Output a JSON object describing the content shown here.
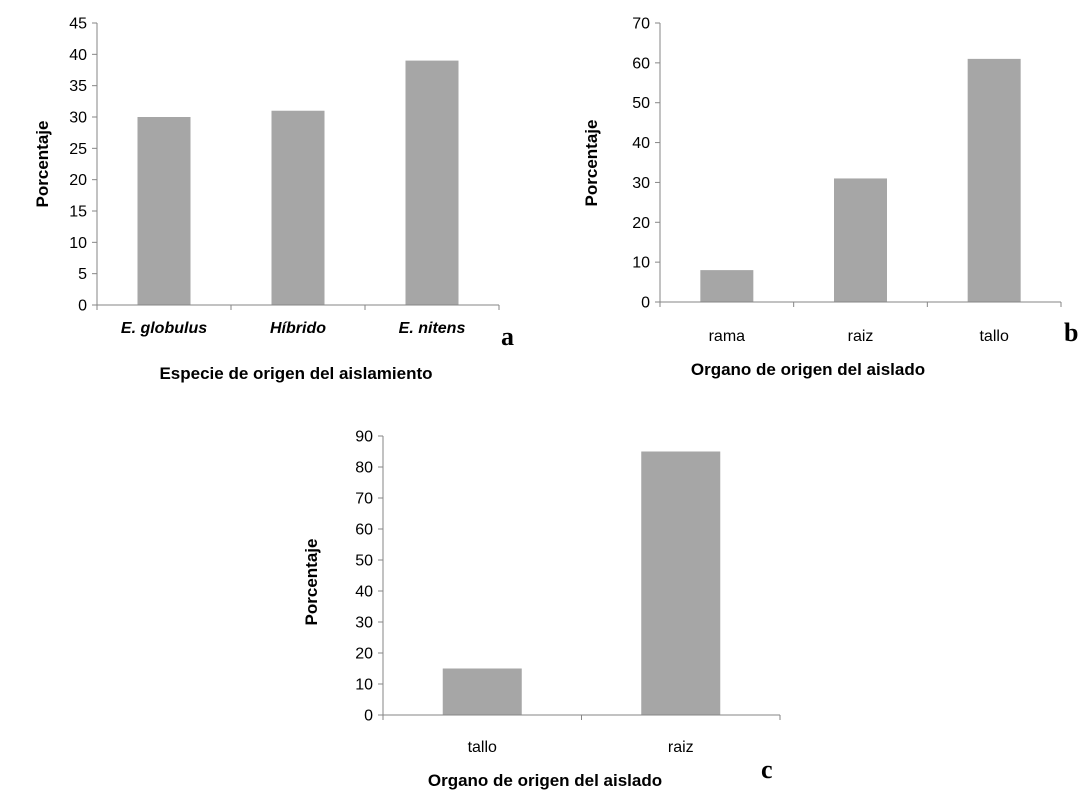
{
  "chart_data": [
    {
      "id": "a",
      "type": "bar",
      "panel_label": "a",
      "categories": [
        "E. globulus",
        "Híbrido",
        "E. nitens"
      ],
      "categories_italic": true,
      "values": [
        30,
        31,
        39
      ],
      "title": "",
      "xlabel": "Especie de origen del aislamiento",
      "ylabel": "Porcentaje",
      "ylim": [
        0,
        45
      ],
      "ytick_step": 5,
      "yticks": [
        "0",
        "5",
        "10",
        "15",
        "20",
        "25",
        "30",
        "35",
        "40",
        "45"
      ],
      "grid": false,
      "legend": "none",
      "bar_color": "#a6a6a6"
    },
    {
      "id": "b",
      "type": "bar",
      "panel_label": "b",
      "categories": [
        "rama",
        "raiz",
        "tallo"
      ],
      "categories_italic": false,
      "values": [
        8,
        31,
        61
      ],
      "title": "",
      "xlabel": "Organo de origen del aislado",
      "ylabel": "Porcentaje",
      "ylim": [
        0,
        70
      ],
      "ytick_step": 10,
      "yticks": [
        "0",
        "10",
        "20",
        "30",
        "40",
        "50",
        "60",
        "70"
      ],
      "grid": false,
      "legend": "none",
      "bar_color": "#a6a6a6"
    },
    {
      "id": "c",
      "type": "bar",
      "panel_label": "c",
      "categories": [
        "tallo",
        "raiz"
      ],
      "categories_italic": false,
      "values": [
        15,
        85
      ],
      "title": "",
      "xlabel": "Organo de origen del aislado",
      "ylabel": "Porcentaje",
      "ylim": [
        0,
        90
      ],
      "ytick_step": 10,
      "yticks": [
        "0",
        "10",
        "20",
        "30",
        "40",
        "50",
        "60",
        "70",
        "80",
        "90"
      ],
      "grid": false,
      "legend": "none",
      "bar_color": "#a6a6a6"
    }
  ]
}
